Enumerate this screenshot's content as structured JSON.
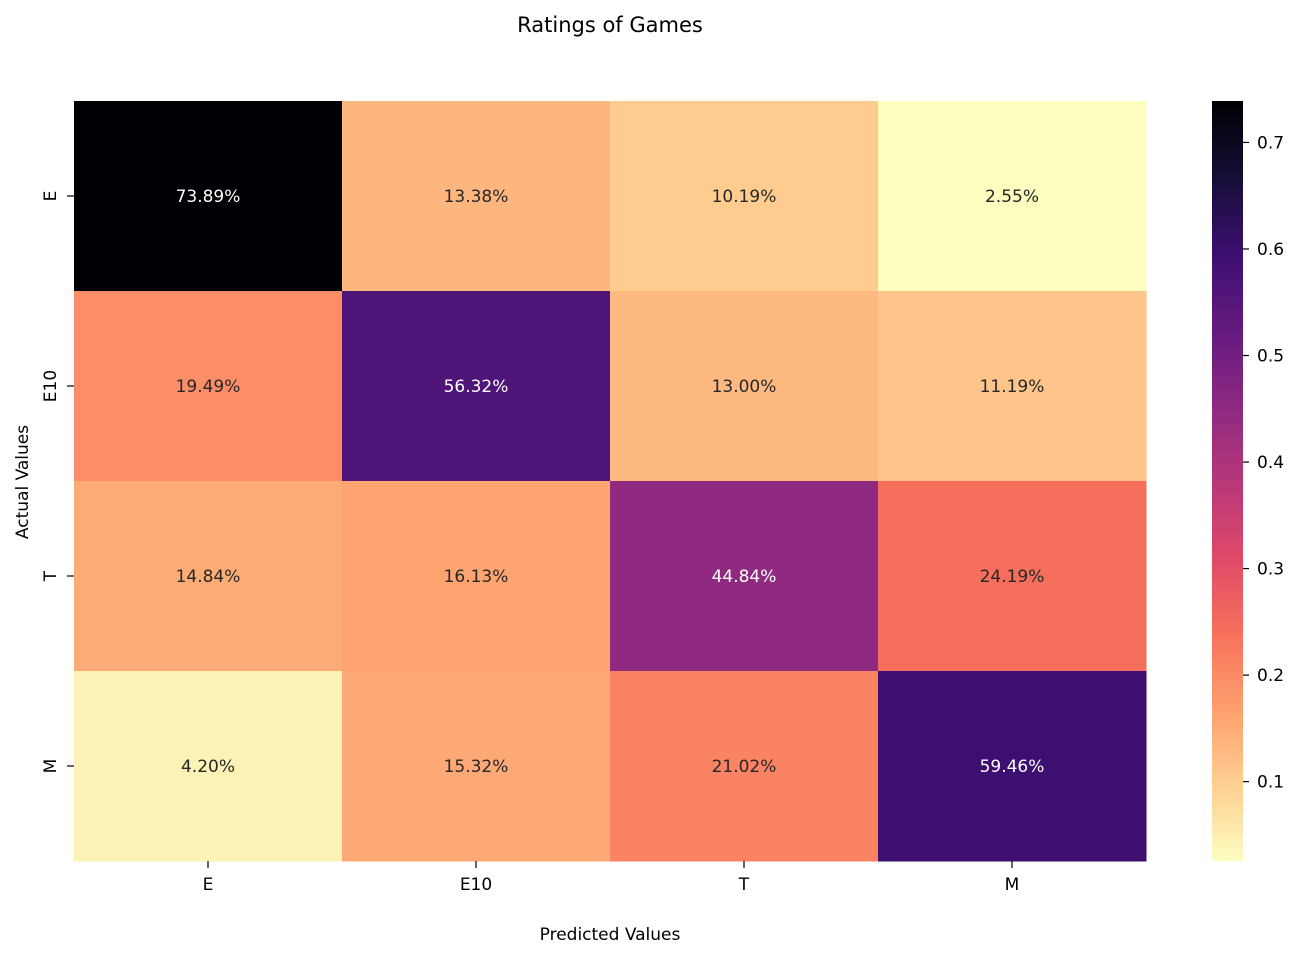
{
  "chart_data": {
    "type": "heatmap",
    "title": "Ratings of Games",
    "xlabel": "Predicted Values",
    "ylabel": "Actual Values",
    "x_categories": [
      "E",
      "E10",
      "T",
      "M"
    ],
    "y_categories": [
      "E",
      "E10",
      "T",
      "M"
    ],
    "values": [
      [
        0.7389,
        0.1338,
        0.1019,
        0.0255
      ],
      [
        0.1949,
        0.5632,
        0.13,
        0.1119
      ],
      [
        0.1484,
        0.1613,
        0.4484,
        0.2419
      ],
      [
        0.042,
        0.1532,
        0.2102,
        0.5946
      ]
    ],
    "cell_labels": [
      [
        "73.89%",
        "13.38%",
        "10.19%",
        "2.55%"
      ],
      [
        "19.49%",
        "56.32%",
        "13.00%",
        "11.19%"
      ],
      [
        "14.84%",
        "16.13%",
        "44.84%",
        "24.19%"
      ],
      [
        "4.20%",
        "15.32%",
        "21.02%",
        "59.46%"
      ]
    ],
    "colormap": "magma_r",
    "colorbar": {
      "vmin": 0.0255,
      "vmax": 0.7389,
      "ticks": [
        0.1,
        0.2,
        0.3,
        0.4,
        0.5,
        0.6,
        0.7
      ],
      "tick_labels": [
        "0.1",
        "0.2",
        "0.3",
        "0.4",
        "0.5",
        "0.6",
        "0.7"
      ]
    },
    "grid": false
  }
}
